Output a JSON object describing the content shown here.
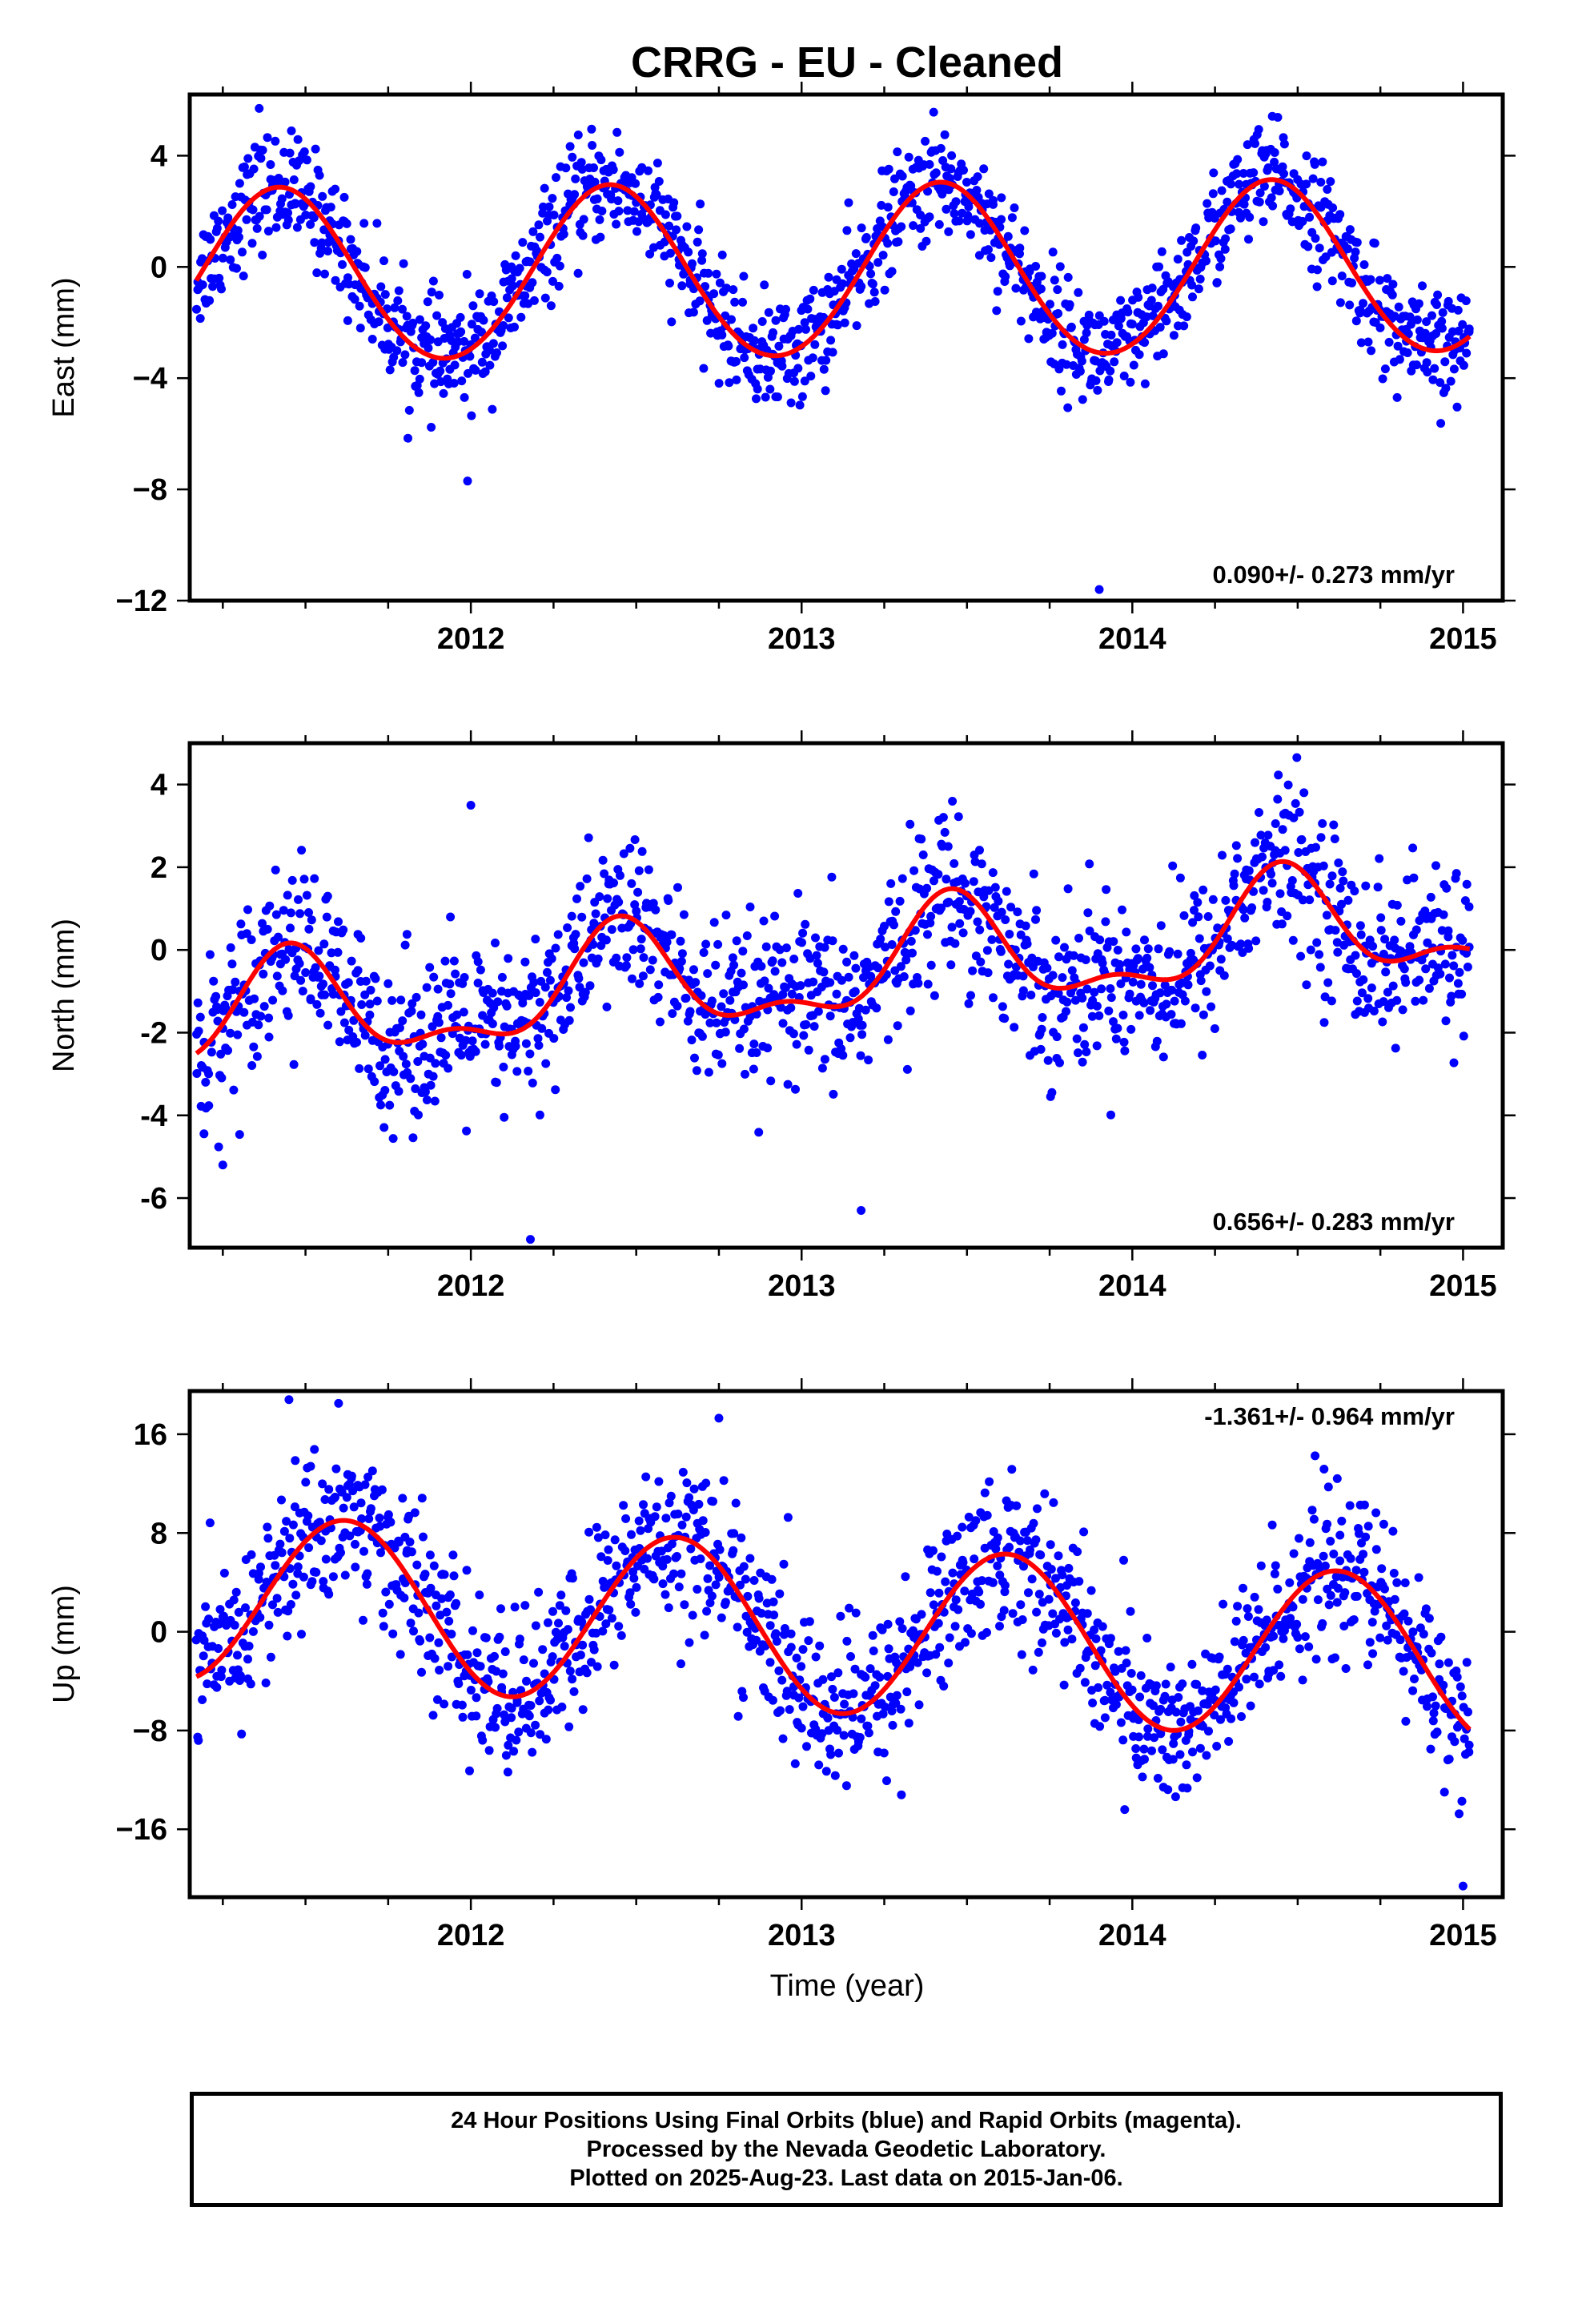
{
  "title": "CRRG  - EU - Cleaned",
  "x_axis_label": "Time (year)",
  "footer": {
    "line1": "24 Hour Positions Using Final Orbits (blue) and Rapid Orbits (magenta).",
    "line2": "Processed by the Nevada Geodetic Laboratory.",
    "line3": "Plotted on 2025-Aug-23. Last data on 2015-Jan-06."
  },
  "colors": {
    "points_final": "#0000ff",
    "points_rapid": "#ff00ff",
    "fit_line": "#ff0000",
    "frame": "#000000"
  },
  "chart_data": [
    {
      "type": "scatter",
      "name_panel": "east",
      "ylabel": "East (mm)",
      "ylim": [
        -12,
        6.2
      ],
      "xlim": [
        2011.15,
        2015.12
      ],
      "yticks": [
        4,
        0,
        -4,
        -8,
        -12
      ],
      "yticklabels": [
        "4",
        "0",
        "−4",
        "−8",
        "−12"
      ],
      "xticks": [
        2012,
        2013,
        2014,
        2015
      ],
      "xticklabels": [
        "2012",
        "2013",
        "2014",
        "2015"
      ],
      "annotation": "0.090+/- 0.273 mm/yr",
      "annotation_position": "bottom-right",
      "grid": false,
      "fit": {
        "model": "trend + annual + semiannual",
        "t0": 2013.1,
        "offset": -0.2,
        "rate": 0.09,
        "annual": {
          "amplitude": 3.1,
          "peak": 2011.42
        },
        "semiannual": {
          "amplitude": 0.12,
          "peak": 2011.42
        }
      },
      "points": {
        "count": 1400,
        "x_range": [
          2011.17,
          2015.02
        ],
        "scatter_sd": 1.0,
        "outliers": [
          [
            2011.99,
            -7.7
          ],
          [
            2013.9,
            -11.6
          ],
          [
            2011.36,
            5.7
          ]
        ]
      }
    },
    {
      "type": "scatter",
      "name_panel": "north",
      "ylabel": "North (mm)",
      "ylim": [
        -7.2,
        5
      ],
      "xlim": [
        2011.15,
        2015.12
      ],
      "yticks": [
        4,
        2,
        0,
        -2,
        -4,
        -6
      ],
      "yticklabels": [
        "4",
        "2",
        "0",
        "-2",
        "-4",
        "-6"
      ],
      "xticks": [
        2012,
        2013,
        2014,
        2015
      ],
      "xticklabels": [
        "2012",
        "2013",
        "2014",
        "2015"
      ],
      "annotation": "0.656+/- 0.283 mm/yr",
      "annotation_position": "bottom-right",
      "grid": false,
      "fit": {
        "model": "trend + annual + semiannual",
        "t0": 2013.1,
        "offset": -0.5,
        "rate": 0.656,
        "annual": {
          "amplitude": 1.2,
          "peak": 2011.45
        },
        "semiannual": {
          "amplitude": 0.55,
          "peak": 2011.45
        }
      },
      "points": {
        "count": 1400,
        "x_range": [
          2011.17,
          2015.02
        ],
        "scatter_sd": 1.0,
        "outliers": [
          [
            2012.0,
            3.5
          ],
          [
            2011.25,
            -5.2
          ],
          [
            2012.18,
            -7.0
          ],
          [
            2013.18,
            -6.3
          ]
        ]
      }
    },
    {
      "type": "scatter",
      "name_panel": "up",
      "ylabel": "Up (mm)",
      "ylim": [
        -21.5,
        19.5
      ],
      "xlim": [
        2011.15,
        2015.12
      ],
      "yticks": [
        16,
        8,
        0,
        -8,
        -16
      ],
      "yticklabels": [
        "16",
        "8",
        "0",
        "−8",
        "−16"
      ],
      "xticks": [
        2012,
        2013,
        2014,
        2015
      ],
      "xticklabels": [
        "2012",
        "2013",
        "2014",
        "2015"
      ],
      "annotation": "-1.361+/- 0.964 mm/yr",
      "annotation_position": "top-right",
      "grid": false,
      "fit": {
        "model": "trend + annual",
        "t0": 2013.1,
        "offset": 0.2,
        "rate": -1.361,
        "annual": {
          "amplitude": 6.8,
          "peak": 2011.62
        },
        "semiannual": {
          "amplitude": 0,
          "peak": 2011.62
        }
      },
      "points": {
        "count": 1400,
        "x_range": [
          2011.17,
          2015.02
        ],
        "scatter_sd": 3.3,
        "outliers": [
          [
            2011.45,
            18.8
          ],
          [
            2011.6,
            18.5
          ],
          [
            2012.75,
            17.3
          ],
          [
            2015.0,
            -20.6
          ]
        ]
      }
    }
  ]
}
